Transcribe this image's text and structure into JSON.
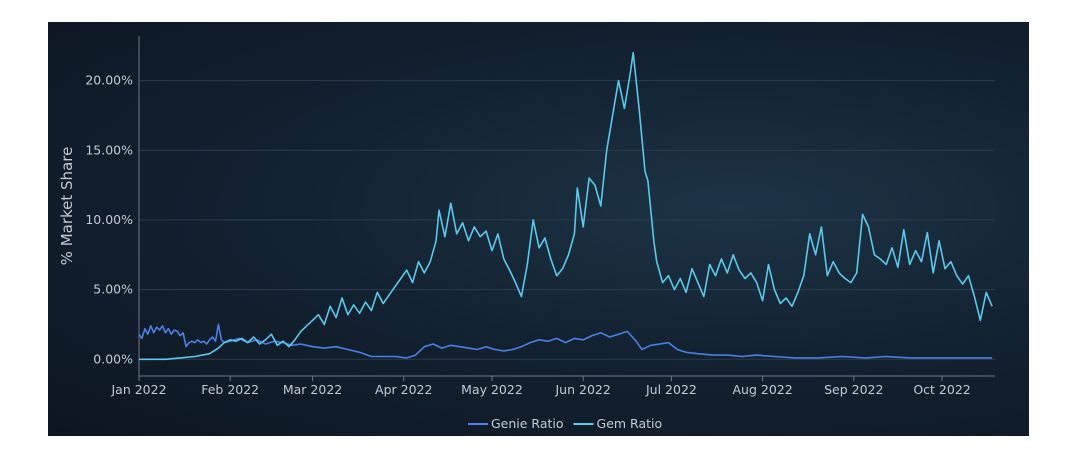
{
  "chart_data": {
    "type": "line",
    "ylabel": "% Market Share",
    "xlabel": "",
    "title": "",
    "ylim": [
      -0.012,
      0.232
    ],
    "xlim": [
      "2022-01-01",
      "2022-10-19"
    ],
    "y_tick_values": [
      0,
      0.05,
      0.1,
      0.15,
      0.2
    ],
    "y_tick_labels": [
      "0.00%",
      "5.00%",
      "10.00%",
      "15.00%",
      "20.00%"
    ],
    "x_ticks": [
      {
        "date": "2022-01-01",
        "label": "Jan 2022"
      },
      {
        "date": "2022-02-01",
        "label": "Feb 2022"
      },
      {
        "date": "2022-03-01",
        "label": "Mar 2022"
      },
      {
        "date": "2022-04-01",
        "label": "Apr 2022"
      },
      {
        "date": "2022-05-01",
        "label": "May 2022"
      },
      {
        "date": "2022-06-01",
        "label": "Jun 2022"
      },
      {
        "date": "2022-07-01",
        "label": "Jul 2022"
      },
      {
        "date": "2022-08-01",
        "label": "Aug 2022"
      },
      {
        "date": "2022-09-01",
        "label": "Sep 2022"
      },
      {
        "date": "2022-10-01",
        "label": "Oct 2022"
      }
    ],
    "grid": true,
    "legend_position": "bottom-center",
    "series": [
      {
        "name": "Genie Ratio",
        "color": "#4a7fe6",
        "points": [
          [
            "2022-01-01",
            0.018
          ],
          [
            "2022-01-02",
            0.015
          ],
          [
            "2022-01-03",
            0.022
          ],
          [
            "2022-01-04",
            0.018
          ],
          [
            "2022-01-05",
            0.024
          ],
          [
            "2022-01-06",
            0.019
          ],
          [
            "2022-01-07",
            0.023
          ],
          [
            "2022-01-08",
            0.021
          ],
          [
            "2022-01-09",
            0.024
          ],
          [
            "2022-01-10",
            0.019
          ],
          [
            "2022-01-11",
            0.022
          ],
          [
            "2022-01-12",
            0.018
          ],
          [
            "2022-01-13",
            0.021
          ],
          [
            "2022-01-14",
            0.02
          ],
          [
            "2022-01-15",
            0.017
          ],
          [
            "2022-01-16",
            0.019
          ],
          [
            "2022-01-17",
            0.009
          ],
          [
            "2022-01-18",
            0.012
          ],
          [
            "2022-01-19",
            0.013
          ],
          [
            "2022-01-20",
            0.012
          ],
          [
            "2022-01-21",
            0.014
          ],
          [
            "2022-01-22",
            0.012
          ],
          [
            "2022-01-23",
            0.013
          ],
          [
            "2022-01-24",
            0.011
          ],
          [
            "2022-01-25",
            0.014
          ],
          [
            "2022-01-26",
            0.016
          ],
          [
            "2022-01-27",
            0.013
          ],
          [
            "2022-01-28",
            0.025
          ],
          [
            "2022-01-29",
            0.014
          ],
          [
            "2022-01-30",
            0.012
          ],
          [
            "2022-02-01",
            0.013
          ],
          [
            "2022-02-04",
            0.015
          ],
          [
            "2022-02-07",
            0.012
          ],
          [
            "2022-02-10",
            0.014
          ],
          [
            "2022-02-13",
            0.011
          ],
          [
            "2022-02-16",
            0.013
          ],
          [
            "2022-02-19",
            0.012
          ],
          [
            "2022-02-22",
            0.01
          ],
          [
            "2022-02-25",
            0.011
          ],
          [
            "2022-03-01",
            0.009
          ],
          [
            "2022-03-05",
            0.008
          ],
          [
            "2022-03-09",
            0.009
          ],
          [
            "2022-03-13",
            0.007
          ],
          [
            "2022-03-17",
            0.005
          ],
          [
            "2022-03-21",
            0.002
          ],
          [
            "2022-03-25",
            0.002
          ],
          [
            "2022-03-29",
            0.002
          ],
          [
            "2022-04-02",
            0.001
          ],
          [
            "2022-04-05",
            0.003
          ],
          [
            "2022-04-08",
            0.009
          ],
          [
            "2022-04-11",
            0.011
          ],
          [
            "2022-04-14",
            0.008
          ],
          [
            "2022-04-17",
            0.01
          ],
          [
            "2022-04-20",
            0.009
          ],
          [
            "2022-04-23",
            0.008
          ],
          [
            "2022-04-26",
            0.007
          ],
          [
            "2022-04-29",
            0.009
          ],
          [
            "2022-05-02",
            0.007
          ],
          [
            "2022-05-05",
            0.006
          ],
          [
            "2022-05-08",
            0.007
          ],
          [
            "2022-05-11",
            0.009
          ],
          [
            "2022-05-14",
            0.012
          ],
          [
            "2022-05-17",
            0.014
          ],
          [
            "2022-05-20",
            0.013
          ],
          [
            "2022-05-23",
            0.015
          ],
          [
            "2022-05-26",
            0.012
          ],
          [
            "2022-05-29",
            0.015
          ],
          [
            "2022-06-01",
            0.014
          ],
          [
            "2022-06-04",
            0.017
          ],
          [
            "2022-06-07",
            0.019
          ],
          [
            "2022-06-10",
            0.016
          ],
          [
            "2022-06-13",
            0.018
          ],
          [
            "2022-06-16",
            0.02
          ],
          [
            "2022-06-19",
            0.013
          ],
          [
            "2022-06-21",
            0.007
          ],
          [
            "2022-06-24",
            0.01
          ],
          [
            "2022-06-27",
            0.011
          ],
          [
            "2022-06-30",
            0.012
          ],
          [
            "2022-07-03",
            0.007
          ],
          [
            "2022-07-06",
            0.005
          ],
          [
            "2022-07-10",
            0.004
          ],
          [
            "2022-07-15",
            0.003
          ],
          [
            "2022-07-20",
            0.003
          ],
          [
            "2022-07-25",
            0.002
          ],
          [
            "2022-07-30",
            0.003
          ],
          [
            "2022-08-05",
            0.002
          ],
          [
            "2022-08-12",
            0.001
          ],
          [
            "2022-08-20",
            0.001
          ],
          [
            "2022-08-28",
            0.002
          ],
          [
            "2022-09-05",
            0.001
          ],
          [
            "2022-09-12",
            0.002
          ],
          [
            "2022-09-20",
            0.001
          ],
          [
            "2022-09-28",
            0.001
          ],
          [
            "2022-10-05",
            0.001
          ],
          [
            "2022-10-12",
            0.001
          ],
          [
            "2022-10-18",
            0.001
          ]
        ]
      },
      {
        "name": "Gem Ratio",
        "color": "#5bc8ec",
        "points": [
          [
            "2022-01-01",
            0.0
          ],
          [
            "2022-01-05",
            0.0
          ],
          [
            "2022-01-10",
            0.0
          ],
          [
            "2022-01-15",
            0.001
          ],
          [
            "2022-01-20",
            0.002
          ],
          [
            "2022-01-25",
            0.004
          ],
          [
            "2022-01-28",
            0.008
          ],
          [
            "2022-01-30",
            0.012
          ],
          [
            "2022-02-01",
            0.014
          ],
          [
            "2022-02-03",
            0.013
          ],
          [
            "2022-02-05",
            0.015
          ],
          [
            "2022-02-07",
            0.012
          ],
          [
            "2022-02-09",
            0.016
          ],
          [
            "2022-02-11",
            0.011
          ],
          [
            "2022-02-13",
            0.014
          ],
          [
            "2022-02-15",
            0.018
          ],
          [
            "2022-02-17",
            0.01
          ],
          [
            "2022-02-19",
            0.013
          ],
          [
            "2022-02-21",
            0.009
          ],
          [
            "2022-02-23",
            0.014
          ],
          [
            "2022-02-25",
            0.02
          ],
          [
            "2022-02-27",
            0.024
          ],
          [
            "2022-03-01",
            0.028
          ],
          [
            "2022-03-03",
            0.032
          ],
          [
            "2022-03-05",
            0.025
          ],
          [
            "2022-03-07",
            0.038
          ],
          [
            "2022-03-09",
            0.03
          ],
          [
            "2022-03-11",
            0.044
          ],
          [
            "2022-03-13",
            0.032
          ],
          [
            "2022-03-15",
            0.039
          ],
          [
            "2022-03-17",
            0.033
          ],
          [
            "2022-03-19",
            0.041
          ],
          [
            "2022-03-21",
            0.035
          ],
          [
            "2022-03-23",
            0.048
          ],
          [
            "2022-03-25",
            0.04
          ],
          [
            "2022-03-27",
            0.046
          ],
          [
            "2022-03-29",
            0.052
          ],
          [
            "2022-03-31",
            0.058
          ],
          [
            "2022-04-02",
            0.064
          ],
          [
            "2022-04-04",
            0.055
          ],
          [
            "2022-04-06",
            0.07
          ],
          [
            "2022-04-08",
            0.062
          ],
          [
            "2022-04-10",
            0.07
          ],
          [
            "2022-04-12",
            0.085
          ],
          [
            "2022-04-13",
            0.107
          ],
          [
            "2022-04-15",
            0.088
          ],
          [
            "2022-04-17",
            0.112
          ],
          [
            "2022-04-19",
            0.09
          ],
          [
            "2022-04-21",
            0.098
          ],
          [
            "2022-04-23",
            0.085
          ],
          [
            "2022-04-25",
            0.095
          ],
          [
            "2022-04-27",
            0.088
          ],
          [
            "2022-04-29",
            0.092
          ],
          [
            "2022-05-01",
            0.078
          ],
          [
            "2022-05-03",
            0.09
          ],
          [
            "2022-05-05",
            0.072
          ],
          [
            "2022-05-07",
            0.064
          ],
          [
            "2022-05-09",
            0.055
          ],
          [
            "2022-05-11",
            0.045
          ],
          [
            "2022-05-13",
            0.068
          ],
          [
            "2022-05-15",
            0.1
          ],
          [
            "2022-05-17",
            0.08
          ],
          [
            "2022-05-19",
            0.087
          ],
          [
            "2022-05-21",
            0.072
          ],
          [
            "2022-05-23",
            0.06
          ],
          [
            "2022-05-25",
            0.065
          ],
          [
            "2022-05-27",
            0.075
          ],
          [
            "2022-05-29",
            0.09
          ],
          [
            "2022-05-30",
            0.123
          ],
          [
            "2022-06-01",
            0.095
          ],
          [
            "2022-06-03",
            0.13
          ],
          [
            "2022-06-05",
            0.125
          ],
          [
            "2022-06-07",
            0.11
          ],
          [
            "2022-06-09",
            0.15
          ],
          [
            "2022-06-11",
            0.175
          ],
          [
            "2022-06-13",
            0.2
          ],
          [
            "2022-06-15",
            0.18
          ],
          [
            "2022-06-17",
            0.205
          ],
          [
            "2022-06-18",
            0.22
          ],
          [
            "2022-06-20",
            0.18
          ],
          [
            "2022-06-22",
            0.135
          ],
          [
            "2022-06-23",
            0.128
          ],
          [
            "2022-06-25",
            0.085
          ],
          [
            "2022-06-26",
            0.07
          ],
          [
            "2022-06-28",
            0.055
          ],
          [
            "2022-06-30",
            0.06
          ],
          [
            "2022-07-02",
            0.05
          ],
          [
            "2022-07-04",
            0.058
          ],
          [
            "2022-07-06",
            0.048
          ],
          [
            "2022-07-08",
            0.065
          ],
          [
            "2022-07-10",
            0.055
          ],
          [
            "2022-07-12",
            0.045
          ],
          [
            "2022-07-14",
            0.068
          ],
          [
            "2022-07-16",
            0.06
          ],
          [
            "2022-07-18",
            0.072
          ],
          [
            "2022-07-20",
            0.062
          ],
          [
            "2022-07-22",
            0.075
          ],
          [
            "2022-07-24",
            0.064
          ],
          [
            "2022-07-26",
            0.058
          ],
          [
            "2022-07-28",
            0.062
          ],
          [
            "2022-07-30",
            0.055
          ],
          [
            "2022-08-01",
            0.042
          ],
          [
            "2022-08-03",
            0.068
          ],
          [
            "2022-08-05",
            0.05
          ],
          [
            "2022-08-07",
            0.04
          ],
          [
            "2022-08-09",
            0.044
          ],
          [
            "2022-08-11",
            0.038
          ],
          [
            "2022-08-13",
            0.048
          ],
          [
            "2022-08-15",
            0.06
          ],
          [
            "2022-08-17",
            0.09
          ],
          [
            "2022-08-19",
            0.075
          ],
          [
            "2022-08-21",
            0.095
          ],
          [
            "2022-08-23",
            0.06
          ],
          [
            "2022-08-25",
            0.07
          ],
          [
            "2022-08-27",
            0.062
          ],
          [
            "2022-08-29",
            0.058
          ],
          [
            "2022-08-31",
            0.055
          ],
          [
            "2022-09-02",
            0.062
          ],
          [
            "2022-09-04",
            0.104
          ],
          [
            "2022-09-06",
            0.095
          ],
          [
            "2022-09-08",
            0.075
          ],
          [
            "2022-09-10",
            0.072
          ],
          [
            "2022-09-12",
            0.068
          ],
          [
            "2022-09-14",
            0.08
          ],
          [
            "2022-09-16",
            0.066
          ],
          [
            "2022-09-18",
            0.093
          ],
          [
            "2022-09-20",
            0.068
          ],
          [
            "2022-09-22",
            0.078
          ],
          [
            "2022-09-24",
            0.07
          ],
          [
            "2022-09-26",
            0.091
          ],
          [
            "2022-09-28",
            0.062
          ],
          [
            "2022-09-30",
            0.085
          ],
          [
            "2022-10-02",
            0.065
          ],
          [
            "2022-10-04",
            0.07
          ],
          [
            "2022-10-06",
            0.06
          ],
          [
            "2022-10-08",
            0.054
          ],
          [
            "2022-10-10",
            0.06
          ],
          [
            "2022-10-12",
            0.045
          ],
          [
            "2022-10-14",
            0.028
          ],
          [
            "2022-10-16",
            0.048
          ],
          [
            "2022-10-18",
            0.038
          ]
        ]
      }
    ]
  }
}
